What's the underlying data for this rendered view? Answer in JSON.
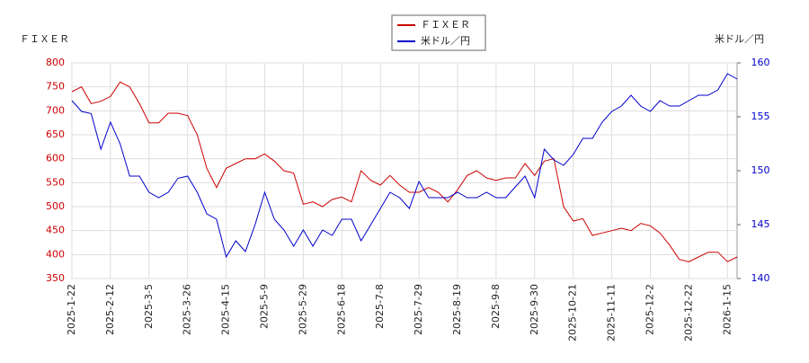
{
  "chart_data": {
    "type": "line",
    "y_label": "ＦＩＸＥＲ",
    "y2_label": "米ドル／円",
    "x": [
      "2025-1-22",
      null,
      null,
      null,
      "2025-2-12",
      null,
      null,
      null,
      "2025-3-5",
      null,
      null,
      null,
      "2025-3-26",
      null,
      null,
      null,
      "2025-4-15",
      null,
      null,
      null,
      "2025-5-9",
      null,
      null,
      null,
      "2025-5-29",
      null,
      null,
      null,
      "2025-6-18",
      null,
      null,
      null,
      "2025-7-8",
      null,
      null,
      null,
      "2025-7-29",
      null,
      null,
      null,
      "2025-8-19",
      null,
      null,
      null,
      "2025-9-8",
      null,
      null,
      null,
      "2025-9-30",
      null,
      null,
      null,
      "2025-10-21",
      null,
      null,
      null,
      "2025-11-11",
      null,
      null,
      null,
      "2025-12-2",
      null,
      null,
      null,
      "2025-12-22",
      null,
      null,
      null,
      "2026-1-15",
      null
    ],
    "series": [
      {
        "name": "ＦＩＸＥＲ",
        "color": "#cc0000",
        "values": [
          740,
          750,
          715,
          720,
          730,
          760,
          750,
          715,
          675,
          675,
          695,
          695,
          690,
          650,
          580,
          540,
          580,
          590,
          600,
          600,
          610,
          595,
          575,
          570,
          505,
          510,
          500,
          515,
          520,
          510,
          575,
          555,
          545,
          565,
          545,
          530,
          530,
          540,
          530,
          510,
          535,
          565,
          575,
          560,
          555,
          560,
          560,
          590,
          565,
          595,
          600,
          500,
          470,
          475,
          440,
          445,
          450,
          455,
          450,
          465,
          460,
          445,
          420,
          390,
          385,
          395,
          405,
          405,
          385,
          395
        ]
      },
      {
        "name": "米ドル／円",
        "color": "#0000cc",
        "axis": "y2",
        "values": [
          156.5,
          155.5,
          155.3,
          152,
          154.5,
          152.5,
          149.5,
          149.5,
          148,
          147.5,
          148,
          149.3,
          149.5,
          148,
          146,
          145.5,
          142,
          143.5,
          142.5,
          145,
          148,
          145.5,
          144.5,
          143,
          144.5,
          143,
          144.5,
          144,
          145.5,
          145.5,
          143.5,
          145,
          146.5,
          148,
          147.5,
          146.5,
          149,
          147.5,
          147.5,
          147.5,
          148,
          147.5,
          147.5,
          148,
          147.5,
          147.5,
          148.5,
          149.5,
          147.5,
          152,
          151,
          150.5,
          151.5,
          153,
          153,
          154.5,
          155.5,
          156,
          157,
          156,
          155.5,
          156.5,
          156,
          156,
          156.5,
          157,
          157,
          157.5,
          159,
          158.5
        ]
      }
    ],
    "ylim": [
      350,
      800
    ],
    "yticks": [
      350,
      400,
      450,
      500,
      550,
      600,
      650,
      700,
      750,
      800
    ],
    "y2lim": [
      140,
      160
    ],
    "y2ticks": [
      140,
      145,
      150,
      155,
      160
    ],
    "grid": true
  }
}
